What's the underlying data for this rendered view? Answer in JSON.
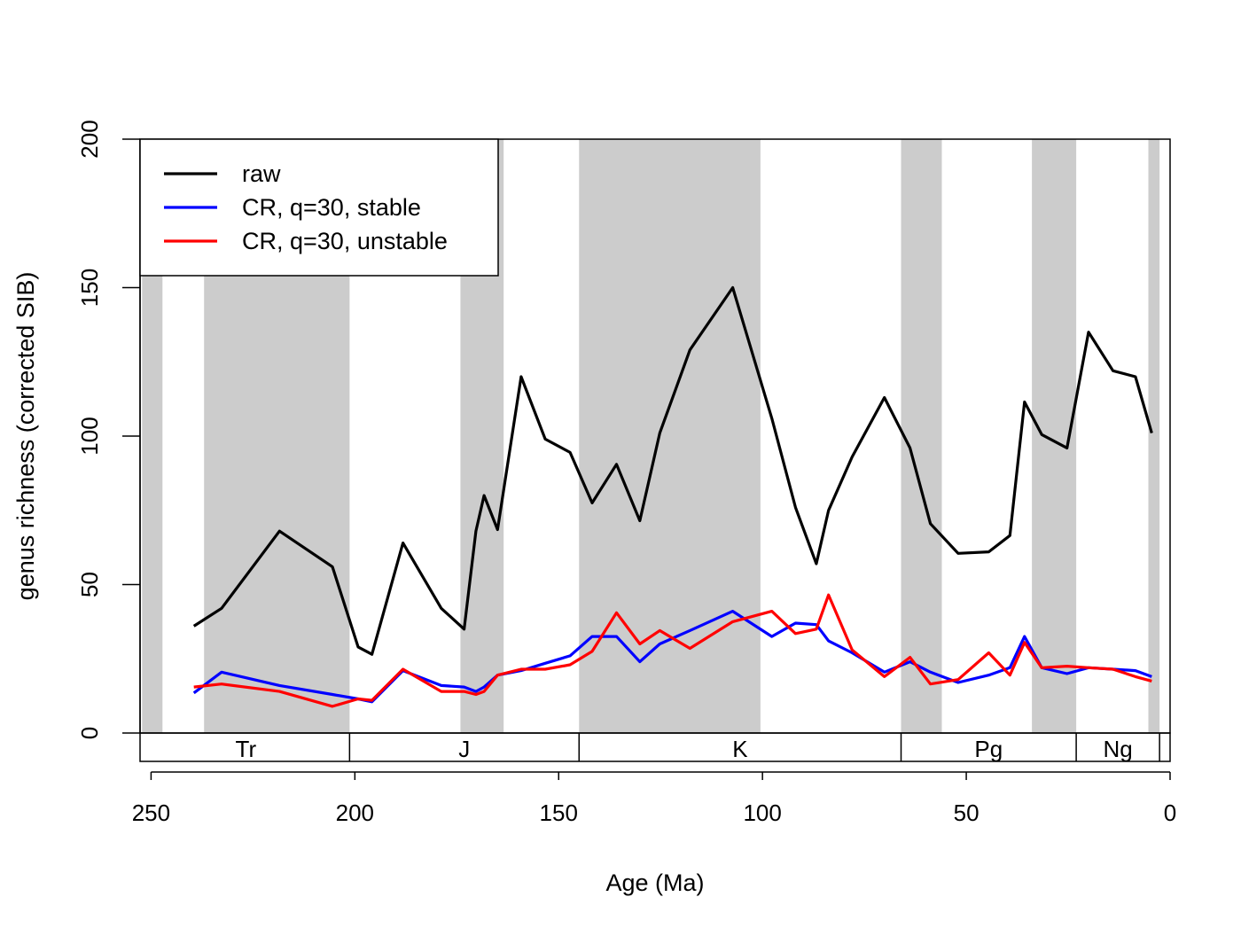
{
  "chart_data": {
    "type": "line",
    "title": "",
    "xlabel": "Age (Ma)",
    "ylabel": "genus richness (corrected SIB)",
    "xlim": [
      252.7,
      0
    ],
    "ylim": [
      0,
      200
    ],
    "x_reversed": true,
    "x_ticks": [
      250,
      200,
      150,
      100,
      50,
      0
    ],
    "y_ticks": [
      0,
      50,
      100,
      150,
      200
    ],
    "grid": false,
    "legend_position": "top-left",
    "shaded_intervals": [
      [
        252.2,
        247.2
      ],
      [
        237.0,
        201.3
      ],
      [
        174.1,
        163.5
      ],
      [
        145.0,
        100.5
      ],
      [
        66.0,
        56.0
      ],
      [
        33.9,
        23.03
      ],
      [
        5.33,
        2.58
      ]
    ],
    "periods": [
      {
        "label": "Tr",
        "start": 252.2,
        "end": 201.3
      },
      {
        "label": "J",
        "start": 201.3,
        "end": 145.0
      },
      {
        "label": "K",
        "start": 145.0,
        "end": 66.0
      },
      {
        "label": "Pg",
        "start": 66.0,
        "end": 23.03
      },
      {
        "label": "Ng",
        "start": 23.03,
        "end": 2.58
      },
      {
        "label": "",
        "start": 2.58,
        "end": 0
      }
    ],
    "series": [
      {
        "name": "raw",
        "color": "#000000",
        "x": [
          239.5,
          232.7,
          218.5,
          205.5,
          199.2,
          195.8,
          188.2,
          178.8,
          173.2,
          170.3,
          168.3,
          165.0,
          159.2,
          153.3,
          147.2,
          141.8,
          135.8,
          130.1,
          125.2,
          117.8,
          107.3,
          97.7,
          91.9,
          86.8,
          83.8,
          78.0,
          70.1,
          63.8,
          58.8,
          52.0,
          44.5,
          39.3,
          35.7,
          31.5,
          25.3,
          20.0,
          14.0,
          8.5,
          4.5
        ],
        "y": [
          36,
          42,
          68,
          56,
          29,
          26.5,
          64,
          42,
          35,
          68,
          80,
          68.5,
          120,
          99,
          94.5,
          77.5,
          90.5,
          71.5,
          101,
          129,
          150,
          106,
          76,
          57,
          75,
          93,
          113,
          96,
          70.5,
          60.5,
          61,
          66.5,
          111.5,
          100.5,
          96,
          135,
          122,
          120,
          101
        ]
      },
      {
        "name": "CR, q=30, stable",
        "color": "#0000ff",
        "x": [
          239.5,
          232.7,
          218.5,
          205.5,
          199.2,
          195.8,
          188.2,
          178.8,
          173.2,
          170.3,
          168.3,
          165.0,
          159.2,
          153.3,
          147.2,
          141.8,
          135.8,
          130.1,
          125.2,
          117.8,
          107.3,
          97.7,
          91.9,
          86.8,
          83.8,
          78.0,
          70.1,
          63.8,
          58.8,
          52.0,
          44.5,
          39.3,
          35.7,
          31.5,
          25.3,
          20.0,
          14.0,
          8.5,
          4.5
        ],
        "y": [
          13.5,
          20.5,
          16,
          13,
          11.5,
          10.5,
          21,
          16,
          15.5,
          14,
          15.5,
          19.5,
          21,
          23.5,
          26,
          32.5,
          32.5,
          24,
          30,
          34.5,
          41,
          32.5,
          37,
          36.5,
          31,
          27,
          20.5,
          24,
          20.5,
          17,
          19.5,
          22,
          32.5,
          22,
          20,
          22,
          21.5,
          21,
          19
        ]
      },
      {
        "name": "CR, q=30, unstable",
        "color": "#ff0000",
        "x": [
          239.5,
          232.7,
          218.5,
          205.5,
          199.2,
          195.8,
          188.2,
          178.8,
          173.2,
          170.3,
          168.3,
          165.0,
          159.2,
          153.3,
          147.2,
          141.8,
          135.8,
          130.1,
          125.2,
          117.8,
          107.3,
          97.7,
          91.9,
          86.8,
          83.8,
          78.0,
          70.1,
          63.8,
          58.8,
          52.0,
          44.5,
          39.3,
          35.7,
          31.5,
          25.3,
          20.0,
          14.0,
          8.5,
          4.5
        ],
        "y": [
          15.5,
          16.5,
          14,
          9,
          11.5,
          11,
          21.5,
          14,
          14,
          13,
          14,
          19.5,
          21.5,
          21.5,
          23,
          27.5,
          40.5,
          30,
          34.5,
          28.5,
          37.5,
          41,
          33.5,
          35,
          46.5,
          28,
          19,
          25.5,
          16.5,
          18,
          27,
          19.5,
          30.5,
          22,
          22.5,
          22,
          21.5,
          19,
          17.5
        ]
      }
    ]
  }
}
